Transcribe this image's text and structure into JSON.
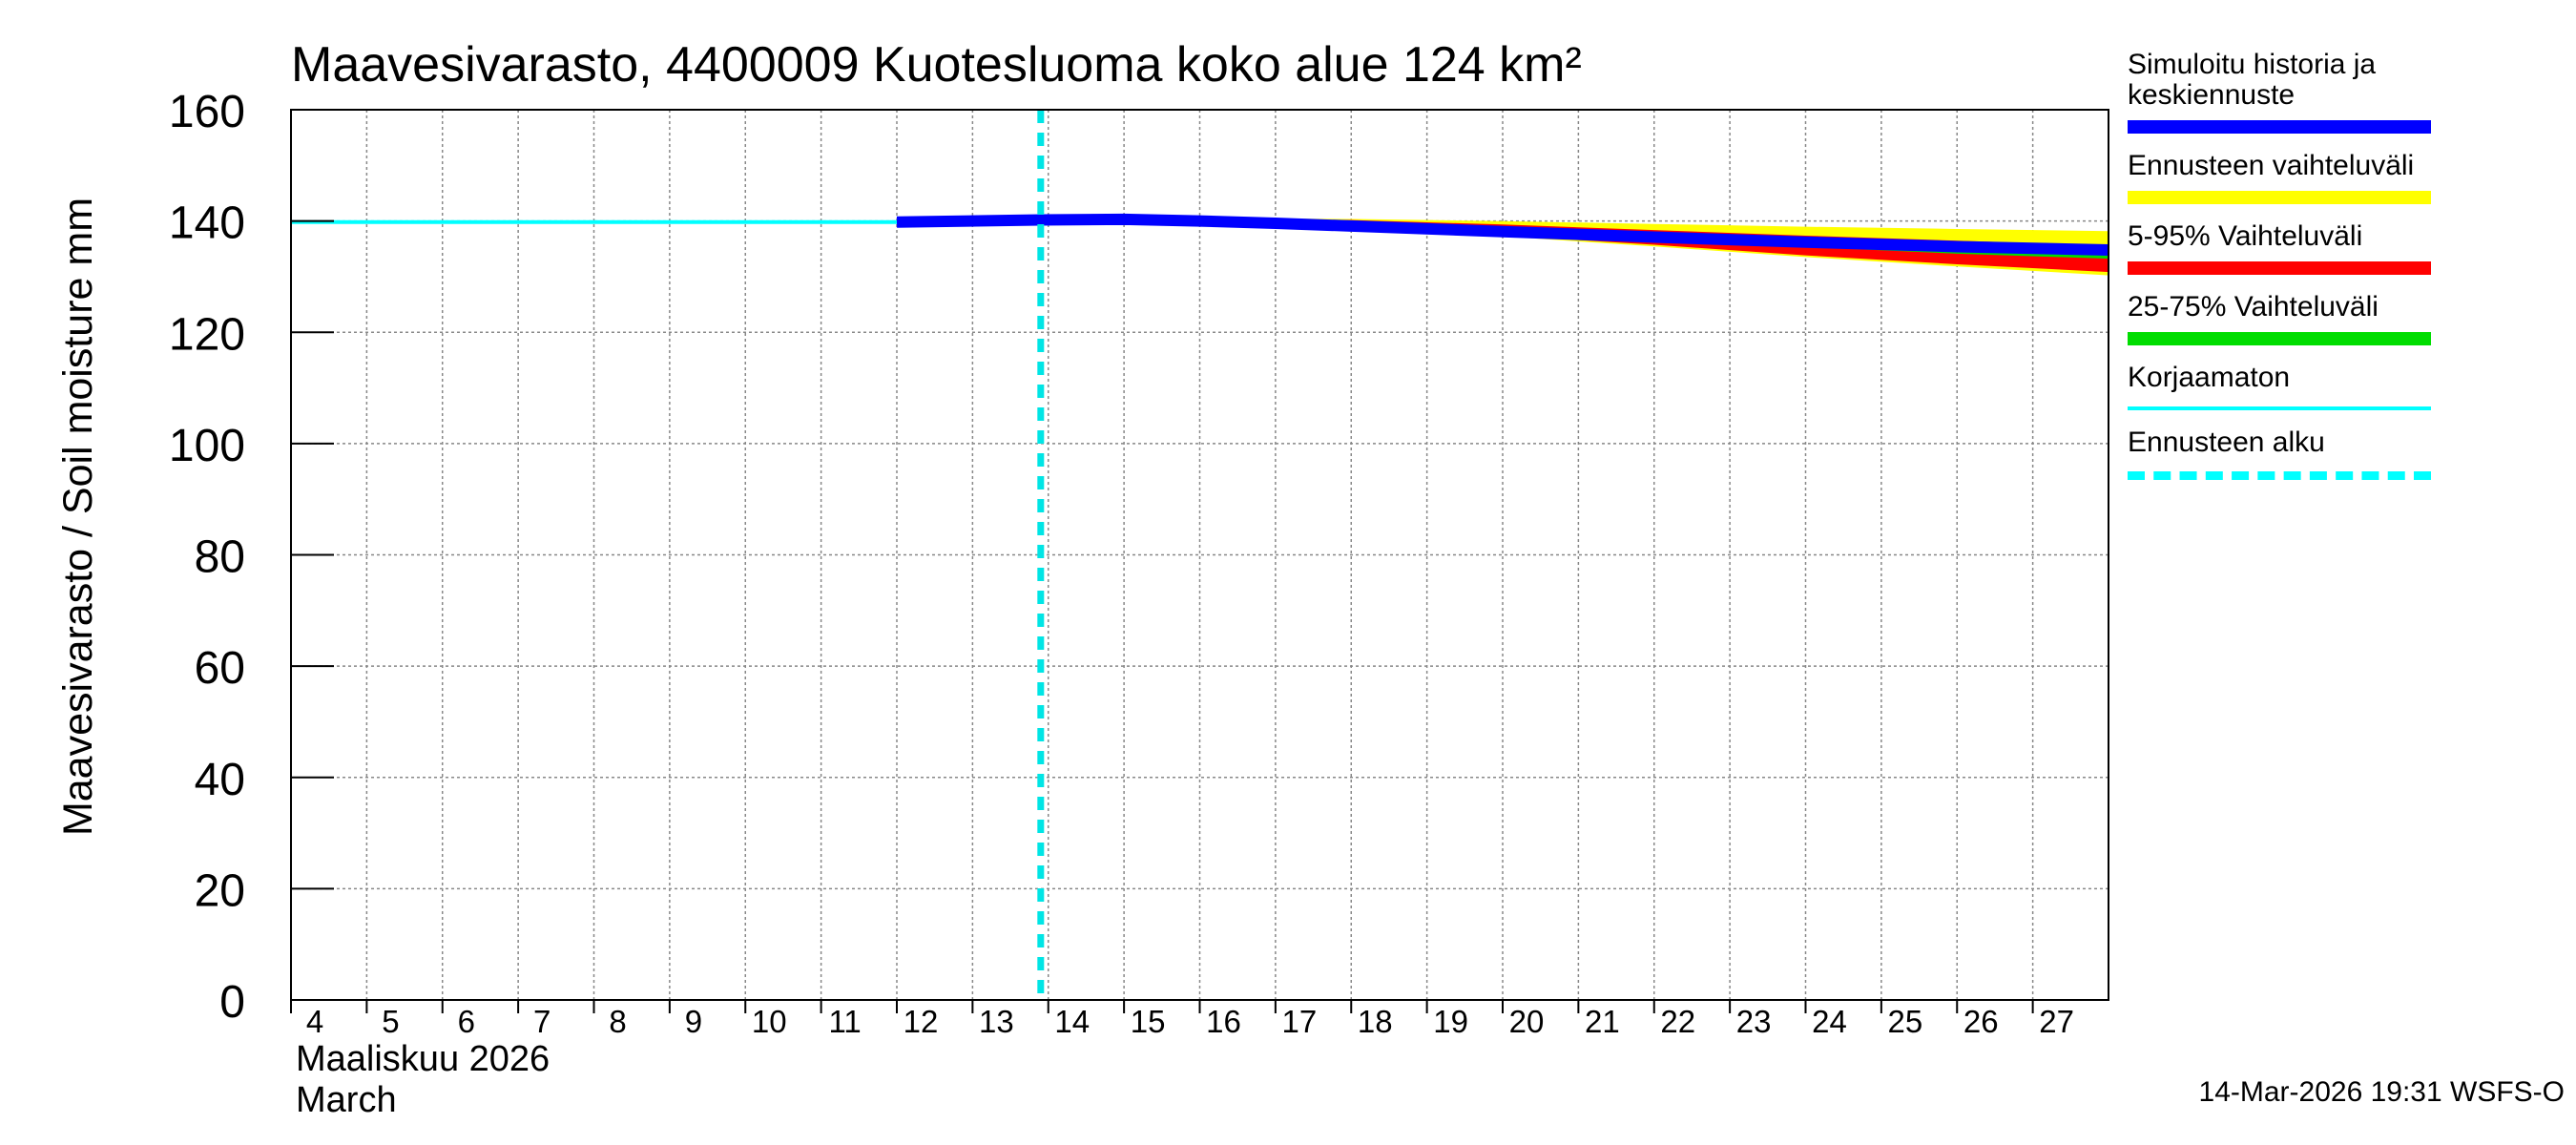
{
  "chart_data": {
    "type": "line",
    "title": "Maavesivarasto, 4400009 Kuotesluoma koko alue 124 km²",
    "ylabel": "Maavesivarasto / Soil moisture   mm",
    "xlabel_line1": "Maaliskuu 2026",
    "xlabel_line2": "March",
    "ylim": [
      0,
      160
    ],
    "yticks": [
      0,
      20,
      40,
      60,
      80,
      100,
      120,
      140,
      160
    ],
    "xlim": [
      4,
      28
    ],
    "xticks": [
      4,
      5,
      6,
      7,
      8,
      9,
      10,
      11,
      12,
      13,
      14,
      15,
      16,
      17,
      18,
      19,
      20,
      21,
      22,
      23,
      24,
      25,
      26,
      27
    ],
    "forecast_start": 13.9,
    "series": [
      {
        "name": "Ennusteen vaihteluväli",
        "color": "#ffff00",
        "kind": "band",
        "x": [
          13.9,
          18,
          20,
          22,
          24,
          26,
          28
        ],
        "upper": [
          140.5,
          140.2,
          139.8,
          139.3,
          138.8,
          138.4,
          138.0
        ],
        "lower": [
          140.0,
          138.9,
          137.4,
          135.6,
          133.7,
          132.0,
          130.4
        ]
      },
      {
        "name": "5-95% Vaihteluväli",
        "color": "#ff0000",
        "kind": "band",
        "x": [
          13.9,
          18,
          20,
          22,
          24,
          26,
          28
        ],
        "upper": [
          140.4,
          140.0,
          139.2,
          138.2,
          137.2,
          136.3,
          135.4
        ],
        "lower": [
          140.0,
          139.0,
          137.6,
          135.9,
          134.0,
          132.4,
          131.0
        ]
      },
      {
        "name": "25-75% Vaihteluväli",
        "color": "#00dd00",
        "kind": "band",
        "x": [
          13.9,
          18,
          20,
          22,
          24,
          26,
          28
        ],
        "upper": [
          140.3,
          139.7,
          138.6,
          137.3,
          136.1,
          135.0,
          134.3
        ],
        "lower": [
          140.1,
          139.3,
          138.1,
          136.8,
          135.5,
          134.3,
          133.4
        ]
      },
      {
        "name": "Korjaamaton",
        "color": "#00ffff",
        "kind": "line",
        "x": [
          4,
          8,
          12,
          13.9,
          15,
          17,
          20,
          24,
          28
        ],
        "values": [
          139.8,
          139.8,
          139.8,
          140.1,
          140.1,
          139.5,
          138.0,
          136.2,
          134.6
        ]
      },
      {
        "name": "Simuloitu historia ja keskiennuste",
        "color": "#0000ff",
        "kind": "line",
        "x": [
          12,
          13.9,
          15,
          16,
          17,
          18,
          20,
          22,
          24,
          26,
          28
        ],
        "values": [
          139.8,
          140.2,
          140.3,
          140.0,
          139.6,
          139.1,
          138.1,
          137.1,
          136.2,
          135.4,
          134.8
        ]
      }
    ],
    "legend": [
      {
        "label": "Simuloitu historia ja\nkeskiennuste",
        "color": "#0000ff",
        "style": "thick"
      },
      {
        "label": "Ennusteen vaihteluväli",
        "color": "#ffff00",
        "style": "thick"
      },
      {
        "label": "5-95% Vaihteluväli",
        "color": "#ff0000",
        "style": "thick"
      },
      {
        "label": "25-75% Vaihteluväli",
        "color": "#00dd00",
        "style": "thick"
      },
      {
        "label": "Korjaamaton",
        "color": "#00ffff",
        "style": "thin"
      },
      {
        "label": "Ennusteen alku",
        "color": "#00ffff",
        "style": "dashed"
      }
    ]
  },
  "footer": {
    "stamp": "14-Mar-2026 19:31 WSFS-O"
  }
}
